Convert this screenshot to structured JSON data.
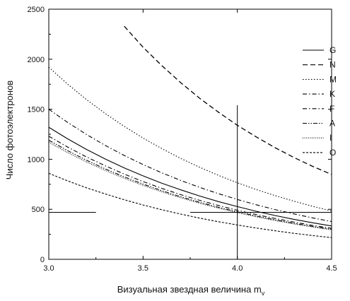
{
  "chart_data": {
    "type": "line",
    "title": "",
    "xlabel": "Визуальная звездная величина  m",
    "xlabel_subscript": "v",
    "ylabel": "Число фотоэлектронов",
    "xlim": [
      3.0,
      4.5
    ],
    "ylim": [
      0,
      2500
    ],
    "xticks": [
      "3.0",
      "3.5",
      "4.0",
      "4.5"
    ],
    "yticks": [
      "0",
      "500",
      "1000",
      "1500",
      "2000",
      "2500"
    ],
    "grid": false,
    "legend_position": "right",
    "x": [
      3.0,
      3.1,
      3.2,
      3.3,
      3.4,
      3.5,
      3.6,
      3.7,
      3.8,
      3.9,
      4.0,
      4.1,
      4.2,
      4.3,
      4.4,
      4.5
    ],
    "series": [
      {
        "name": "G",
        "dash": "solid",
        "color": "#000000",
        "values": [
          1320,
          1204,
          1098,
          1002,
          914,
          834,
          760,
          694,
          633,
          577,
          527,
          480,
          438,
          400,
          365,
          333
        ]
      },
      {
        "name": "N",
        "dash": "dashed",
        "color": "#000000",
        "values": [
          null,
          null,
          null,
          null,
          2330,
          2120,
          1935,
          1765,
          1610,
          1470,
          1340,
          1224,
          1116,
          1018,
          929,
          848
        ]
      },
      {
        "name": "M",
        "dash": "dotted",
        "color": "#000000",
        "values": [
          1920,
          1751,
          1597,
          1457,
          1329,
          1212,
          1106,
          1008,
          920,
          839,
          765,
          698,
          637,
          581,
          530,
          483
        ]
      },
      {
        "name": "K",
        "dash": "dashdot",
        "color": "#000000",
        "values": [
          1500,
          1368,
          1248,
          1138,
          1038,
          947,
          864,
          788,
          719,
          656,
          598,
          545,
          497,
          454,
          414,
          377
        ]
      },
      {
        "name": "F",
        "dash": "dashdot",
        "color": "#000000",
        "values": [
          1230,
          1122,
          1023,
          934,
          852,
          777,
          709,
          646,
          590,
          538,
          490,
          447,
          408,
          372,
          339,
          310
        ]
      },
      {
        "name": "A",
        "dash": "dashdotdot",
        "color": "#000000",
        "values": [
          1190,
          1086,
          990,
          903,
          824,
          752,
          686,
          625,
          570,
          520,
          475,
          433,
          395,
          360,
          329,
          300
        ]
      },
      {
        "name": "I",
        "dash": "dotted-fine",
        "color": "#000000",
        "values": [
          1170,
          1067,
          973,
          888,
          810,
          739,
          674,
          615,
          561,
          511,
          467,
          426,
          388,
          354,
          323,
          295
        ]
      },
      {
        "name": "O",
        "dash": "shortdash",
        "color": "#000000",
        "values": [
          860,
          784,
          715,
          653,
          595,
          543,
          495,
          452,
          412,
          376,
          343,
          313,
          285,
          260,
          237,
          217
        ]
      }
    ],
    "reference_lines": [
      {
        "kind": "horizontal",
        "y": 470,
        "x_from": 3.0,
        "x_to": 3.25
      },
      {
        "kind": "horizontal",
        "y": 470,
        "x_from": 3.75,
        "x_to": 4.5
      },
      {
        "kind": "vertical",
        "x": 4.0,
        "y_from": 0,
        "y_to": 1540
      }
    ]
  }
}
